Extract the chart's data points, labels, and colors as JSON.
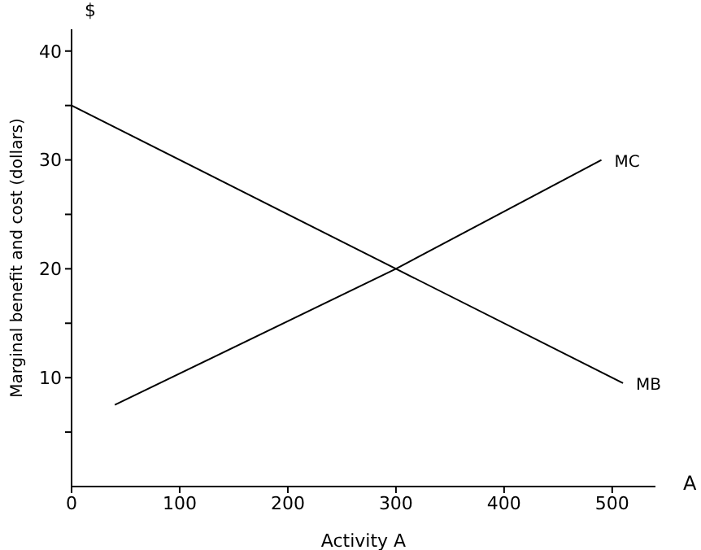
{
  "chart_data": {
    "type": "line",
    "xlabel": "Activity A",
    "ylabel": "Marginal benefit and cost (dollars)",
    "annotations": [
      "$",
      "A"
    ],
    "series": [
      {
        "name": "MC",
        "color": "#000000",
        "x": [
          40,
          300,
          490
        ],
        "values": [
          7.5,
          20,
          30
        ]
      },
      {
        "name": "MB",
        "color": "#000000",
        "x": [
          0,
          300,
          510
        ],
        "values": [
          35,
          20,
          9.5
        ]
      }
    ],
    "xlim": [
      0,
      540
    ],
    "xticks": [
      {
        "value": 0,
        "label": "0"
      },
      100,
      200,
      300,
      400,
      500
    ],
    "ylim": [
      0,
      42
    ],
    "yticks": [
      {
        "value": 5,
        "label": null
      },
      10,
      {
        "value": 15,
        "label": null
      },
      20,
      {
        "value": 25,
        "label": null
      },
      30,
      {
        "value": 35,
        "label": null
      },
      40
    ],
    "grid": false,
    "legend": false,
    "marker": "none",
    "line_style": "solid"
  }
}
